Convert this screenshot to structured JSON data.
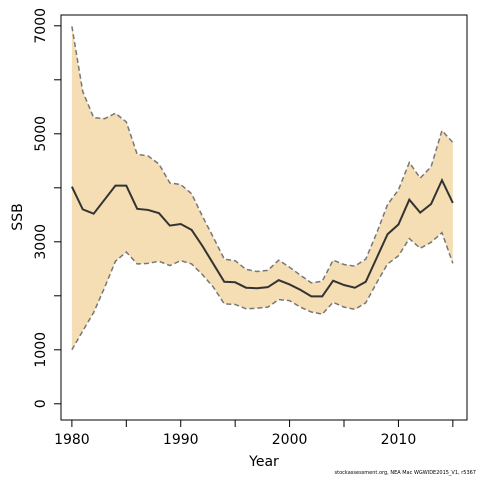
{
  "chart_data": {
    "type": "line",
    "title": "",
    "xlabel": "Year",
    "ylabel": "SSB",
    "xlim": [
      1979,
      2016.3
    ],
    "ylim": [
      -300,
      7200
    ],
    "x_ticks": [
      1980,
      1990,
      2000,
      2010
    ],
    "y_ticks": [
      0,
      1000,
      3000,
      5000,
      7000
    ],
    "band_color": "#f5deb3",
    "line_color": "#333333",
    "band_edge_color": "#777777",
    "grid": false,
    "x": [
      1980,
      1981,
      1982,
      1983,
      1984,
      1985,
      1986,
      1987,
      1988,
      1989,
      1990,
      1991,
      1992,
      1993,
      1994,
      1995,
      1996,
      1997,
      1998,
      1999,
      2000,
      2001,
      2002,
      2003,
      2004,
      2005,
      2006,
      2007,
      2008,
      2009,
      2010,
      2011,
      2012,
      2013,
      2014,
      2015
    ],
    "series": [
      {
        "role": "estimate",
        "values": [
          4020,
          3600,
          3520,
          3780,
          4040,
          4040,
          3610,
          3590,
          3530,
          3300,
          3330,
          3220,
          2920,
          2590,
          2260,
          2250,
          2150,
          2140,
          2160,
          2290,
          2210,
          2110,
          1990,
          1990,
          2280,
          2200,
          2150,
          2260,
          2700,
          3140,
          3320,
          3780,
          3540,
          3700,
          4140,
          3720
        ]
      },
      {
        "role": "upper",
        "values": [
          6990,
          5780,
          5300,
          5280,
          5380,
          5220,
          4620,
          4590,
          4440,
          4090,
          4060,
          3890,
          3470,
          3080,
          2680,
          2650,
          2490,
          2450,
          2470,
          2660,
          2530,
          2380,
          2240,
          2270,
          2660,
          2580,
          2550,
          2680,
          3160,
          3690,
          3960,
          4470,
          4180,
          4390,
          5060,
          4840
        ]
      },
      {
        "role": "lower",
        "values": [
          1000,
          1350,
          1690,
          2150,
          2640,
          2810,
          2590,
          2600,
          2640,
          2560,
          2650,
          2590,
          2390,
          2160,
          1850,
          1840,
          1760,
          1770,
          1790,
          1930,
          1910,
          1790,
          1700,
          1660,
          1880,
          1790,
          1750,
          1870,
          2240,
          2590,
          2740,
          3060,
          2880,
          2990,
          3170,
          2600
        ]
      }
    ]
  },
  "footer": {
    "credit": "stockassessment.org, NEA Mac WGWIDE2015_V1, r5367"
  }
}
